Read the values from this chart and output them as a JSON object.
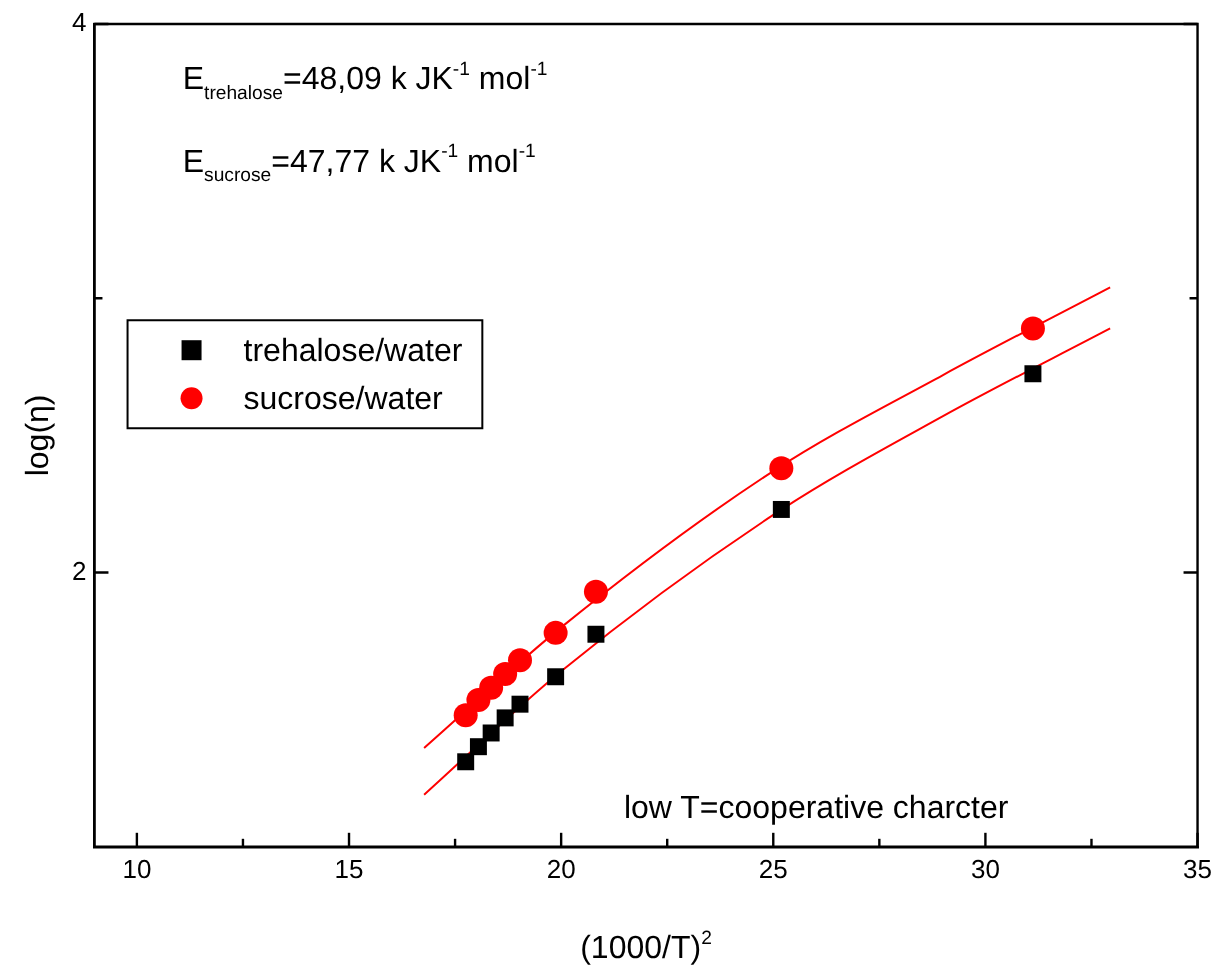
{
  "chart_data": {
    "type": "scatter",
    "xlabel": "(1000/T)$^{2}$",
    "ylabel": "log(η)",
    "xlim": [
      9,
      35
    ],
    "xticks": [
      10,
      {
        "value": 12.5,
        "label": null
      },
      15,
      {
        "value": 17.5,
        "label": null
      },
      20,
      {
        "value": 22.5,
        "label": null
      },
      25,
      {
        "value": 27.5,
        "label": null
      },
      30,
      {
        "value": 32.5,
        "label": null
      },
      35
    ],
    "ylim": [
      1,
      4
    ],
    "yticks": [
      2,
      {
        "value": 3,
        "label": null
      },
      4
    ],
    "grid": false,
    "legend": "left",
    "annotations": [
      "E$_{trehalose}$=48,09 k JK$^{-1}$ mol$^{-1}$",
      "E$_{sucrose}$=47,77 k JK$^{-1}$ mol$^{-1}$",
      "low T=cooperative charcter"
    ],
    "series": [
      {
        "name": "trehalose/water",
        "marker": "square",
        "color": "#000000",
        "x": [
          17.75,
          18.05,
          18.35,
          18.68,
          19.03,
          19.87,
          20.82,
          25.19,
          31.12
        ],
        "values": [
          1.31,
          1.365,
          1.415,
          1.47,
          1.52,
          1.62,
          1.775,
          2.23,
          2.725
        ]
      },
      {
        "name": "sucrose/water",
        "marker": "circle",
        "color": "#ff0000",
        "x": [
          17.75,
          18.05,
          18.35,
          18.68,
          19.03,
          19.87,
          20.82,
          25.19,
          31.12
        ],
        "values": [
          1.48,
          1.535,
          1.58,
          1.63,
          1.68,
          1.78,
          1.93,
          2.38,
          2.89
        ]
      },
      {
        "type": "line",
        "marker": "none",
        "color": "#ff0000",
        "x": [
          16.77,
          20,
          25,
          29,
          32.94
        ],
        "values": [
          1.36,
          1.8,
          2.37,
          2.72,
          3.04
        ]
      },
      {
        "type": "line",
        "marker": "none",
        "color": "#ff0000",
        "x": [
          16.77,
          20,
          25,
          29,
          32.94
        ],
        "values": [
          1.19,
          1.64,
          2.21,
          2.57,
          2.89
        ]
      }
    ]
  }
}
